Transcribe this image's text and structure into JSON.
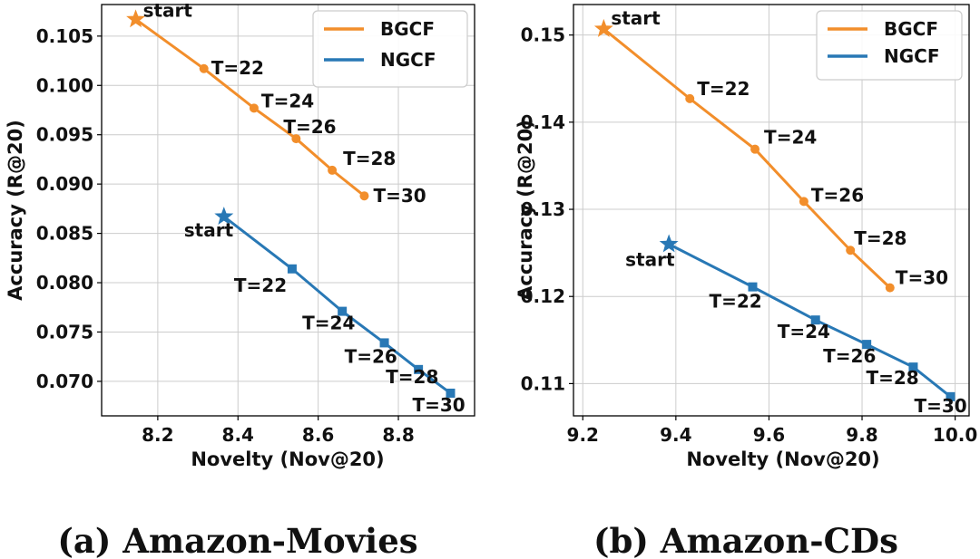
{
  "colors": {
    "BGCF": "#f28e2b",
    "NGCF": "#2878b5"
  },
  "chart_data": [
    {
      "type": "line",
      "xlabel": "Novelty (Nov@20)",
      "ylabel": "Accuracy (R@20)",
      "xlim": [
        8.06,
        8.99
      ],
      "ylim": [
        0.0665,
        0.1082
      ],
      "xticks": [
        "8.2",
        "8.4",
        "8.6",
        "8.8"
      ],
      "yticks": [
        "0.070",
        "0.075",
        "0.080",
        "0.085",
        "0.090",
        "0.095",
        "0.100",
        "0.105"
      ],
      "grid": true,
      "legend_position": "top-right",
      "caption": "(a) Amazon-Movies",
      "series": [
        {
          "name": "BGCF",
          "marker": "circle",
          "start_marker": "star",
          "x": [
            8.145,
            8.315,
            8.44,
            8.545,
            8.635,
            8.715
          ],
          "y": [
            0.1067,
            0.1017,
            0.0977,
            0.0946,
            0.0914,
            0.0888
          ],
          "labels": [
            "start",
            "T=22",
            "T=24",
            "T=26",
            "T=28",
            "T=30"
          ]
        },
        {
          "name": "NGCF",
          "marker": "square",
          "start_marker": "star",
          "x": [
            8.365,
            8.535,
            8.66,
            8.765,
            8.85,
            8.93
          ],
          "y": [
            0.0867,
            0.0814,
            0.0771,
            0.0739,
            0.0712,
            0.0688
          ],
          "labels": [
            "start",
            "T=22",
            "T=24",
            "T=26",
            "T=28",
            "T=30"
          ]
        }
      ]
    },
    {
      "type": "line",
      "xlabel": "Novelty (Nov@20)",
      "ylabel": "Accuracy (R@20)",
      "xlim": [
        9.18,
        10.03
      ],
      "ylim": [
        0.1063,
        0.1535
      ],
      "xticks": [
        "9.2",
        "9.4",
        "9.6",
        "9.8",
        "10.0"
      ],
      "yticks": [
        "0.11",
        "0.12",
        "0.13",
        "0.14",
        "0.15"
      ],
      "grid": true,
      "legend_position": "top-right",
      "caption": "(b) Amazon-CDs",
      "series": [
        {
          "name": "BGCF",
          "marker": "circle",
          "start_marker": "star",
          "x": [
            9.245,
            9.43,
            9.57,
            9.675,
            9.775,
            9.86
          ],
          "y": [
            0.1507,
            0.1427,
            0.1369,
            0.1309,
            0.1253,
            0.121
          ],
          "labels": [
            "start",
            "T=22",
            "T=24",
            "T=26",
            "T=28",
            "T=30"
          ]
        },
        {
          "name": "NGCF",
          "marker": "square",
          "start_marker": "star",
          "x": [
            9.385,
            9.565,
            9.7,
            9.81,
            9.91,
            9.99
          ],
          "y": [
            0.126,
            0.1211,
            0.1173,
            0.1145,
            0.1119,
            0.1085
          ],
          "labels": [
            "start",
            "T=22",
            "T=24",
            "T=26",
            "T=28",
            "T=30"
          ]
        }
      ]
    }
  ]
}
